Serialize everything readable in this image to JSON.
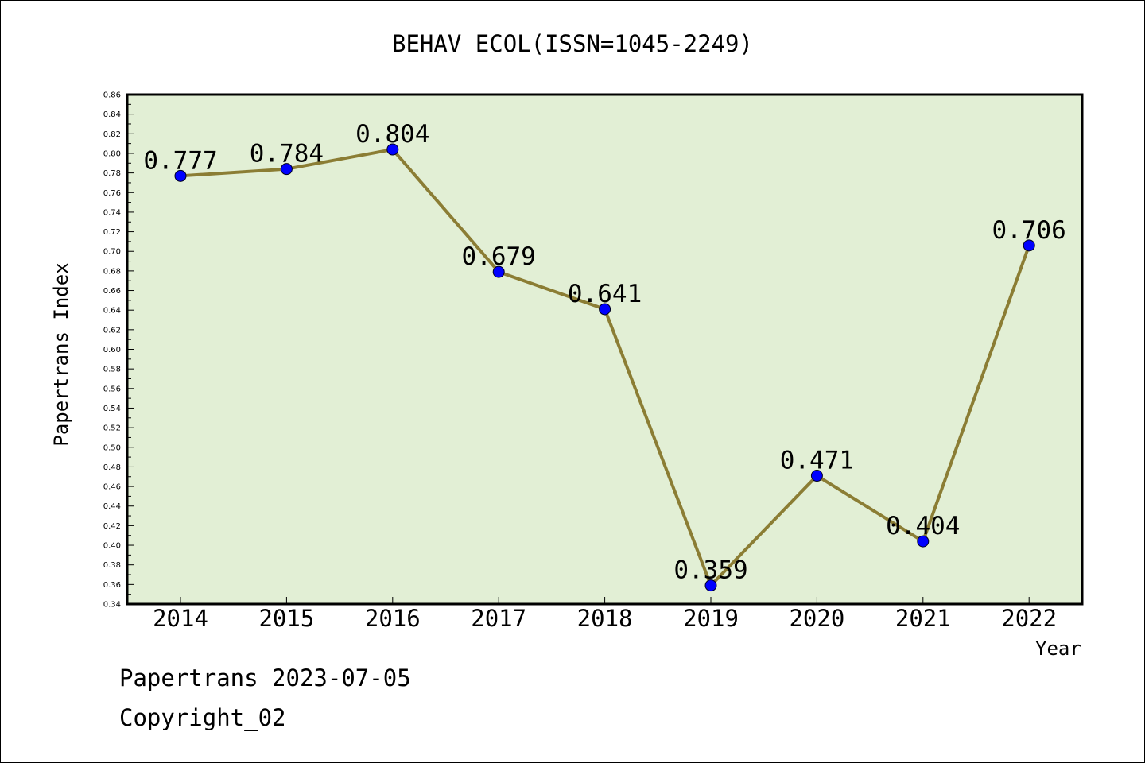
{
  "chart_data": {
    "type": "line",
    "title": "BEHAV ECOL(ISSN=1045-2249)",
    "xlabel": "Year",
    "ylabel": "Papertrans Index",
    "categories": [
      "2014",
      "2015",
      "2016",
      "2017",
      "2018",
      "2019",
      "2020",
      "2021",
      "2022"
    ],
    "values": [
      0.777,
      0.784,
      0.804,
      0.679,
      0.641,
      0.359,
      0.471,
      0.404,
      0.706
    ],
    "data_labels": [
      "0.777",
      "0.784",
      "0.804",
      "0.679",
      "0.641",
      "0.359",
      "0.471",
      "0.404",
      "0.706"
    ],
    "ylim": [
      0.34,
      0.86
    ],
    "yticks": [
      "0.34",
      "0.36",
      "0.38",
      "0.40",
      "0.42",
      "0.44",
      "0.46",
      "0.48",
      "0.50",
      "0.52",
      "0.54",
      "0.56",
      "0.58",
      "0.60",
      "0.62",
      "0.64",
      "0.66",
      "0.68",
      "0.70",
      "0.72",
      "0.74",
      "0.76",
      "0.78",
      "0.80",
      "0.82",
      "0.84",
      "0.86"
    ],
    "grid": false,
    "colors": {
      "plot_background": "#e2efd5",
      "line": "#8b7d34",
      "marker": "#0000ff"
    }
  },
  "footer": {
    "line1": "Papertrans 2023-07-05",
    "line2": "Copyright_02"
  }
}
